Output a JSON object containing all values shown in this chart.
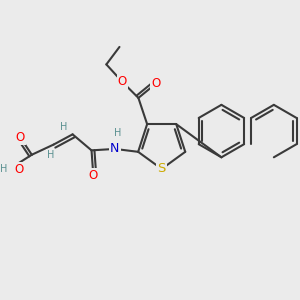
{
  "bg_color": "#ebebeb",
  "bond_color": "#3a3a3a",
  "atom_colors": {
    "O": "#ff0000",
    "N": "#0000cc",
    "S": "#ccaa00",
    "H_label": "#5a9090",
    "C": "#3a3a3a"
  },
  "figsize": [
    3.0,
    3.0
  ],
  "dpi": 100,
  "xlim": [
    0,
    10.0
  ],
  "ylim": [
    0,
    10.0
  ]
}
